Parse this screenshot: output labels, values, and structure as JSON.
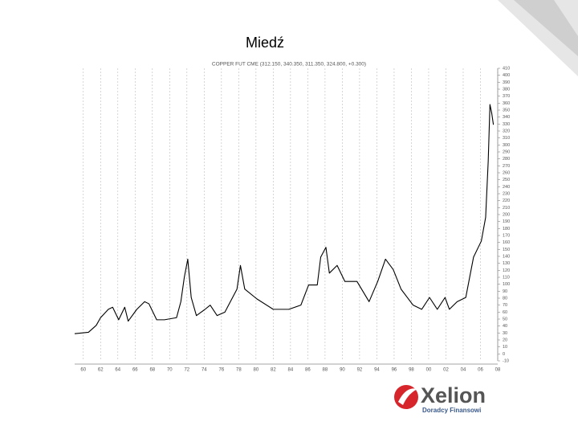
{
  "slide_title": "Miedź",
  "logo": {
    "name": "Xelion",
    "tagline": "Doradcy Finansowi"
  },
  "chart_data": {
    "type": "line",
    "title": "COPPER FUT CME (312.150, 340.350, 311.350, 324.800, +0.300)",
    "x": [
      1959.0,
      1960.6,
      1961.5,
      1962.0,
      1962.9,
      1963.4,
      1964.1,
      1964.8,
      1965.2,
      1966.2,
      1967.1,
      1967.6,
      1968.5,
      1969.4,
      1970.8,
      1971.3,
      1971.7,
      1972.1,
      1972.5,
      1973.1,
      1974.1,
      1974.7,
      1975.5,
      1976.4,
      1977.8,
      1978.2,
      1978.7,
      1980.1,
      1982.0,
      1983.8,
      1985.2,
      1986.1,
      1987.1,
      1987.5,
      1988.1,
      1988.5,
      1989.4,
      1990.3,
      1991.7,
      1993.1,
      1994.1,
      1995.0,
      1995.9,
      1996.8,
      1998.2,
      1999.2,
      2000.1,
      2001.0,
      2001.9,
      2002.4,
      2003.3,
      2004.3,
      2005.2,
      2006.1,
      2006.6,
      2006.9,
      2007.1,
      2007.3,
      2007.5
    ],
    "series": [
      {
        "name": "COPPER FUT CME",
        "color": "#000000",
        "values": [
          29,
          31,
          41,
          52,
          64,
          67,
          49,
          67,
          47,
          64,
          75,
          72,
          49,
          49,
          52,
          75,
          110,
          136,
          81,
          55,
          64,
          70,
          55,
          60,
          93,
          127,
          93,
          79,
          64,
          64,
          70,
          99,
          99,
          139,
          153,
          116,
          127,
          104,
          104,
          75,
          104,
          136,
          121,
          93,
          70,
          64,
          81,
          64,
          81,
          64,
          75,
          81,
          139,
          162,
          196,
          277,
          358,
          346,
          329
        ]
      }
    ],
    "xlim": [
      1959,
      2008
    ],
    "xticks": [
      {
        "value": 1960,
        "label": "60"
      },
      {
        "value": 1962,
        "label": "62"
      },
      {
        "value": 1964,
        "label": "64"
      },
      {
        "value": 1966,
        "label": "66"
      },
      {
        "value": 1968,
        "label": "68"
      },
      {
        "value": 1970,
        "label": "70"
      },
      {
        "value": 1972,
        "label": "72"
      },
      {
        "value": 1974,
        "label": "74"
      },
      {
        "value": 1976,
        "label": "76"
      },
      {
        "value": 1978,
        "label": "78"
      },
      {
        "value": 1980,
        "label": "80"
      },
      {
        "value": 1982,
        "label": "82"
      },
      {
        "value": 1984,
        "label": "84"
      },
      {
        "value": 1986,
        "label": "86"
      },
      {
        "value": 1988,
        "label": "88"
      },
      {
        "value": 1990,
        "label": "90"
      },
      {
        "value": 1992,
        "label": "92"
      },
      {
        "value": 1994,
        "label": "94"
      },
      {
        "value": 1996,
        "label": "96"
      },
      {
        "value": 1998,
        "label": "98"
      },
      {
        "value": 2000,
        "label": "00"
      },
      {
        "value": 2002,
        "label": "02"
      },
      {
        "value": 2004,
        "label": "04"
      },
      {
        "value": 2006,
        "label": "06"
      },
      {
        "value": 2008,
        "label": "08"
      }
    ],
    "ylim": [
      -10,
      410
    ],
    "yticks": [
      -10,
      0,
      10,
      20,
      30,
      40,
      50,
      60,
      70,
      80,
      90,
      100,
      110,
      120,
      130,
      140,
      150,
      160,
      170,
      180,
      190,
      200,
      210,
      220,
      230,
      240,
      250,
      260,
      270,
      280,
      290,
      300,
      310,
      320,
      330,
      340,
      350,
      360,
      370,
      380,
      390,
      400,
      410
    ],
    "grid": true,
    "y_axis_side": "right"
  }
}
